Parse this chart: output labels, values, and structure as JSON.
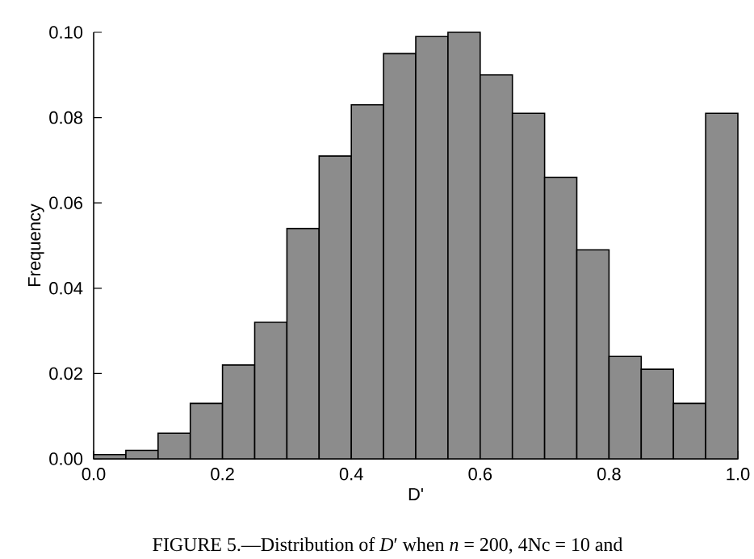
{
  "chart_data": {
    "type": "histogram",
    "xlabel": "D'",
    "ylabel": "Frequency",
    "bins": [
      0,
      0.05,
      0.1,
      0.15,
      0.2,
      0.25,
      0.3,
      0.35,
      0.4,
      0.45,
      0.5,
      0.55,
      0.6,
      0.65,
      0.7,
      0.75,
      0.8,
      0.85,
      0.9,
      0.95,
      1.0
    ],
    "values": [
      0.001,
      0.002,
      0.006,
      0.013,
      0.022,
      0.032,
      0.054,
      0.071,
      0.083,
      0.095,
      0.099,
      0.1,
      0.09,
      0.081,
      0.066,
      0.049,
      0.024,
      0.021,
      0.013,
      0.081
    ],
    "color": "#8c8c8c",
    "xlim": [
      0,
      1
    ],
    "ylim": [
      0,
      0.1
    ],
    "xticks": [
      {
        "value": 0,
        "label": "0.0"
      },
      {
        "value": 0.2,
        "label": "0.2"
      },
      {
        "value": 0.4,
        "label": "0.4"
      },
      {
        "value": 0.6,
        "label": "0.6"
      },
      {
        "value": 0.8,
        "label": "0.8"
      },
      {
        "value": 1,
        "label": "1.0"
      }
    ],
    "yticks": [
      {
        "value": 0,
        "label": "0.00"
      },
      {
        "value": 0.02,
        "label": "0.02"
      },
      {
        "value": 0.04,
        "label": "0.04"
      },
      {
        "value": 0.06,
        "label": "0.06"
      },
      {
        "value": 0.08,
        "label": "0.08"
      },
      {
        "value": 0.1,
        "label": "0.10"
      }
    ],
    "annotations": [
      "FIGURE 5.—Distribution of *D*′ when *n* = 200, 4Nc = 10 and"
    ]
  }
}
